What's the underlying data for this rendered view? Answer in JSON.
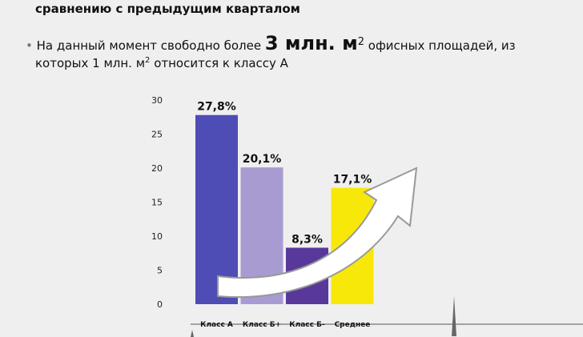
{
  "header": {
    "line": "сравнению с предыдущим кварталом"
  },
  "bullet": {
    "part1": "На данный момент свободно более ",
    "big": "3 млн. м",
    "sup1": "2",
    "part2": " офисных площадей, из",
    "part3": "которых 1 млн. м",
    "sup2": "2",
    "part4": " относится к классу А"
  },
  "chart_data": {
    "type": "bar",
    "categories": [
      "Класс А",
      "Класс Б+",
      "Класс Б-",
      "Среднее"
    ],
    "values": [
      27.8,
      20.1,
      8.3,
      17.1
    ],
    "value_labels": [
      "27,8%",
      "20,1%",
      "8,3%",
      "17,1%"
    ],
    "colors": [
      "#4d4db5",
      "#a89bd1",
      "#58399b",
      "#f7e80a"
    ],
    "ylim": [
      0,
      30
    ],
    "yticks": [
      0,
      5,
      10,
      15,
      20,
      25,
      30
    ],
    "grid": false
  }
}
